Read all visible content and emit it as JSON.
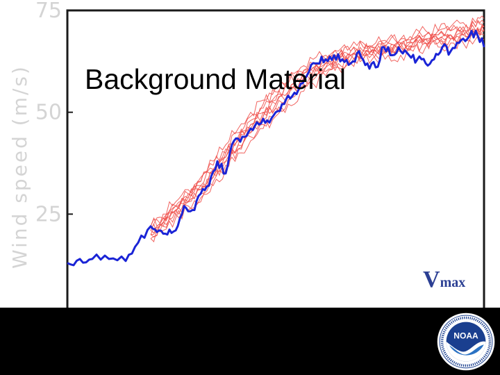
{
  "slide": {
    "title": "Background Material"
  },
  "logo": {
    "name": "noaa-logo",
    "text": "NOAA"
  },
  "chart_data": {
    "type": "line",
    "title": "",
    "xlabel": "",
    "ylabel": "Wind speed (m/s)",
    "ylim": [
      0,
      75
    ],
    "xlim": [
      0,
      100
    ],
    "yticks": [
      "25",
      "50",
      "75"
    ],
    "grid": false,
    "annotation_main": "V",
    "annotation_sub": "max",
    "colors": {
      "observed": "#1a24d6",
      "ensemble": "#f0534f",
      "axis": "#1a1a1a",
      "tick_label": "#d4d4d4",
      "annotation": "#2b3f93"
    },
    "observed": {
      "x": [
        0,
        3,
        6,
        10,
        14,
        17,
        20,
        22,
        24,
        26,
        28,
        30,
        32,
        34,
        36,
        38,
        40,
        42,
        44,
        46,
        48,
        50,
        52,
        54,
        56,
        58,
        60,
        62,
        64,
        66,
        68,
        70,
        72,
        74,
        76,
        78,
        80,
        82,
        84,
        86,
        88,
        90,
        92,
        94,
        96,
        98,
        100
      ],
      "y": [
        13,
        14,
        14,
        14,
        13.5,
        18,
        22,
        21,
        20,
        21,
        27,
        26,
        30,
        32,
        38,
        35,
        43,
        44,
        46,
        47,
        48,
        50,
        52,
        54,
        57,
        60,
        62,
        63,
        64,
        63,
        62,
        65,
        62,
        61,
        66,
        64,
        65,
        64,
        63,
        62,
        63,
        66,
        65,
        67,
        68,
        70,
        66
      ]
    },
    "ensemble": [
      {
        "x": [
          20,
          23,
          26,
          29,
          32,
          35,
          38,
          41,
          44,
          47,
          50,
          53,
          56,
          59,
          62,
          65,
          68,
          71,
          74,
          77,
          80,
          83,
          86,
          89,
          92,
          95,
          98,
          100
        ],
        "y": [
          20,
          23,
          26,
          28,
          30,
          34,
          38,
          42,
          45,
          49,
          52,
          55,
          58,
          61,
          63,
          64,
          65,
          66,
          66,
          67,
          68,
          68,
          69,
          70,
          70,
          71,
          71,
          72
        ]
      },
      {
        "x": [
          20,
          23,
          26,
          29,
          32,
          35,
          38,
          41,
          44,
          47,
          50,
          53,
          56,
          59,
          62,
          65,
          68,
          71,
          74,
          77,
          80,
          83,
          86,
          89,
          92,
          95,
          98,
          100
        ],
        "y": [
          21,
          24,
          27,
          30,
          32,
          36,
          40,
          44,
          48,
          51,
          54,
          57,
          59,
          61,
          62,
          63,
          64,
          64,
          65,
          65,
          66,
          67,
          67,
          68,
          68,
          69,
          69,
          70
        ]
      },
      {
        "x": [
          20,
          23,
          26,
          29,
          32,
          35,
          38,
          41,
          44,
          47,
          50,
          53,
          56,
          59,
          62,
          65,
          68,
          71,
          74,
          77,
          80,
          83,
          86,
          89,
          92,
          95,
          98,
          100
        ],
        "y": [
          19,
          22,
          25,
          27,
          29,
          33,
          37,
          41,
          44,
          47,
          50,
          53,
          56,
          58,
          60,
          61,
          62,
          63,
          64,
          65,
          65,
          66,
          67,
          67,
          68,
          68,
          69,
          69
        ]
      },
      {
        "x": [
          20,
          23,
          26,
          29,
          32,
          35,
          38,
          41,
          44,
          47,
          50,
          53,
          56,
          59,
          62,
          65,
          68,
          71,
          74,
          77,
          80,
          83,
          86,
          89,
          92,
          95,
          98,
          100
        ],
        "y": [
          22,
          25,
          28,
          31,
          34,
          38,
          42,
          46,
          50,
          53,
          56,
          58,
          60,
          62,
          63,
          64,
          64,
          65,
          66,
          66,
          67,
          67,
          68,
          68,
          68,
          69,
          70,
          71
        ]
      },
      {
        "x": [
          20,
          23,
          26,
          29,
          32,
          35,
          38,
          41,
          44,
          47,
          50,
          53,
          56,
          59,
          62,
          65,
          68,
          71,
          74,
          77,
          80,
          83,
          86,
          89,
          92,
          95,
          98,
          100
        ],
        "y": [
          20,
          22,
          25,
          28,
          31,
          35,
          39,
          42,
          46,
          49,
          51,
          54,
          57,
          59,
          61,
          62,
          63,
          64,
          64,
          65,
          66,
          66,
          67,
          68,
          69,
          70,
          70,
          71
        ]
      },
      {
        "x": [
          20,
          23,
          26,
          29,
          32,
          35,
          38,
          41,
          44,
          47,
          50,
          53,
          56,
          59,
          62,
          65,
          68,
          71,
          74,
          77,
          80,
          83,
          86,
          89,
          92,
          95,
          98,
          100
        ],
        "y": [
          21,
          23,
          26,
          29,
          33,
          37,
          41,
          45,
          49,
          52,
          55,
          58,
          61,
          63,
          64,
          65,
          66,
          67,
          67,
          68,
          68,
          69,
          70,
          70,
          71,
          72,
          72,
          73
        ]
      },
      {
        "x": [
          20,
          23,
          26,
          29,
          32,
          35,
          38,
          41,
          44,
          47,
          50,
          53,
          56,
          59,
          62,
          65,
          68,
          71,
          74,
          77,
          80,
          83,
          86,
          89,
          92,
          95,
          98,
          100
        ],
        "y": [
          19,
          21,
          24,
          26,
          28,
          32,
          36,
          40,
          43,
          46,
          49,
          52,
          55,
          57,
          59,
          61,
          62,
          63,
          63,
          64,
          64,
          65,
          66,
          66,
          67,
          67,
          68,
          68
        ]
      },
      {
        "x": [
          20,
          23,
          26,
          29,
          32,
          35,
          38,
          41,
          44,
          47,
          50,
          53,
          56,
          59,
          62,
          65,
          68,
          71,
          74,
          77,
          80,
          83,
          86,
          89,
          92,
          95,
          98,
          100
        ],
        "y": [
          22,
          24,
          27,
          30,
          33,
          36,
          40,
          43,
          47,
          50,
          53,
          56,
          58,
          60,
          62,
          63,
          64,
          65,
          65,
          66,
          66,
          67,
          68,
          68,
          69,
          69,
          70,
          70
        ]
      },
      {
        "x": [
          20,
          23,
          26,
          29,
          32,
          35,
          38,
          41,
          44,
          47,
          50,
          53,
          56,
          59,
          62,
          65,
          68,
          71,
          74,
          77,
          80,
          83,
          86,
          89,
          92,
          95,
          98,
          100
        ],
        "y": [
          20,
          23,
          27,
          29,
          32,
          35,
          39,
          43,
          47,
          50,
          52,
          55,
          57,
          60,
          62,
          64,
          65,
          65,
          66,
          67,
          67,
          68,
          69,
          69,
          70,
          70,
          71,
          71
        ]
      },
      {
        "x": [
          20,
          23,
          26,
          29,
          32,
          35,
          38,
          41,
          44,
          47,
          50,
          53,
          56,
          59,
          62,
          65,
          68,
          71,
          74,
          77,
          80,
          83,
          86,
          89,
          92,
          95,
          98,
          100
        ],
        "y": [
          21,
          24,
          26,
          28,
          31,
          34,
          38,
          41,
          45,
          48,
          51,
          54,
          57,
          59,
          61,
          63,
          64,
          64,
          65,
          66,
          67,
          67,
          68,
          69,
          69,
          70,
          70,
          70
        ]
      }
    ]
  }
}
